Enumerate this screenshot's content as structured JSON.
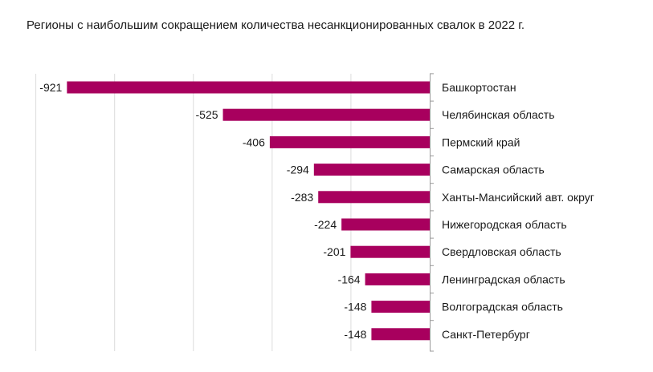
{
  "chart_data": {
    "type": "bar",
    "orientation": "horizontal",
    "title": "Регионы с наибольшим сокращением количества несанкционированных свалок в 2022 г.",
    "categories": [
      "Башкортостан",
      "Челябинская область",
      "Пермский край",
      "Самарская область",
      "Ханты-Мансийский авт. округ",
      "Нижегородская область",
      "Свердловская область",
      "Ленинградская область",
      "Волгоградская область",
      "Санкт-Петербург"
    ],
    "values": [
      -921,
      -525,
      -406,
      -294,
      -283,
      -224,
      -201,
      -164,
      -148,
      -148
    ],
    "xlim": [
      -1000,
      0
    ],
    "grid": true,
    "bar_color": "#a8005e",
    "grid_color": "#dcdcdc",
    "axis_color": "#9a9a9a"
  }
}
